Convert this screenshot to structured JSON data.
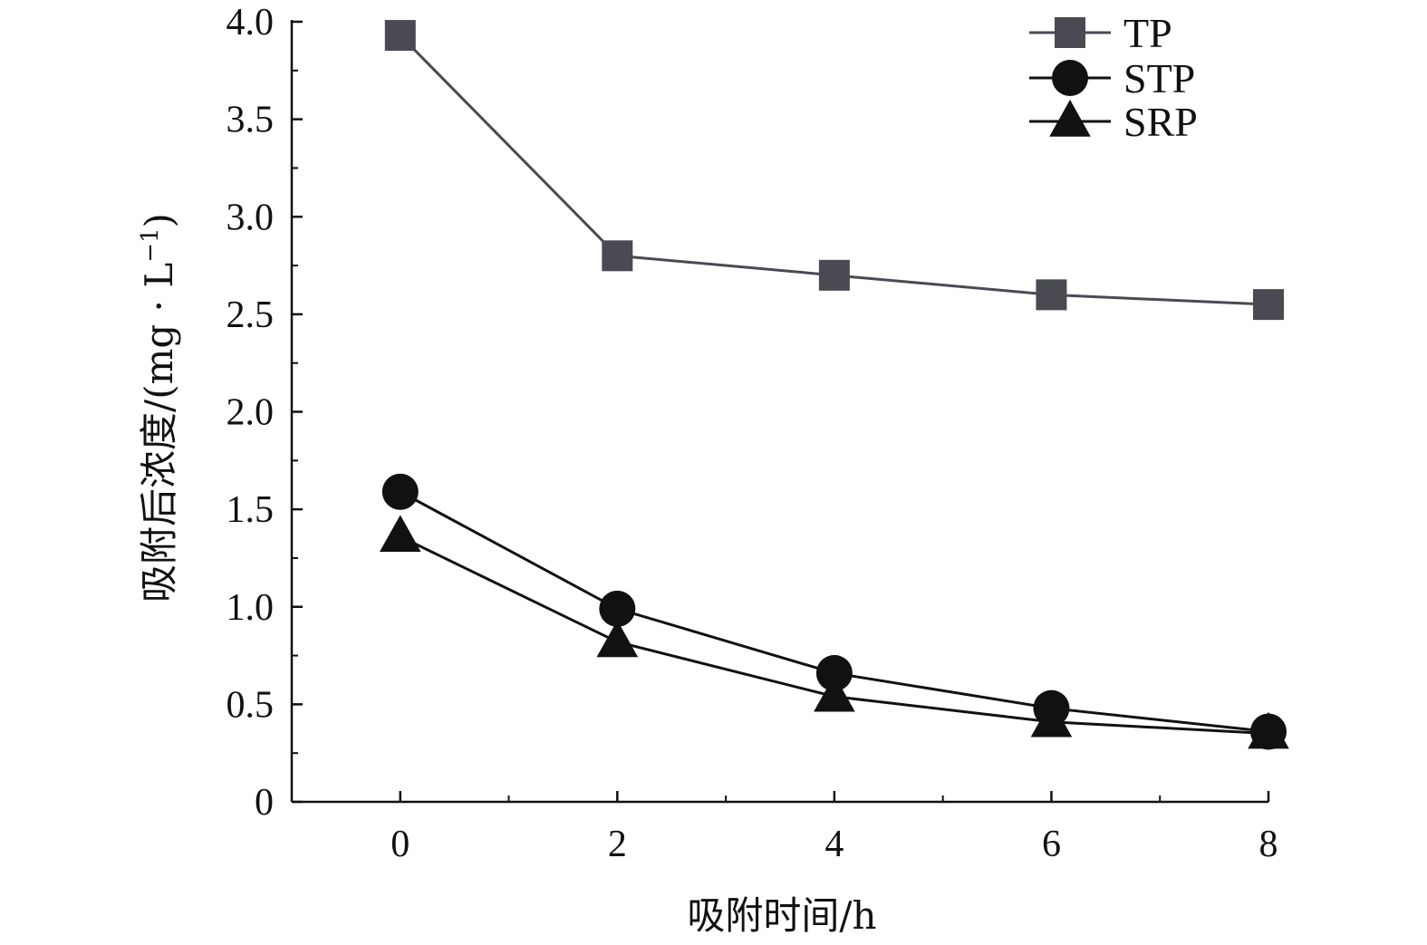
{
  "chart_data": {
    "type": "line",
    "title": "",
    "xlabel": "吸附时间/h",
    "ylabel": "吸附后浓度/(mg · L",
    "ylabel_superscript": "−1",
    "ylabel_close": ")",
    "x": [
      0,
      2,
      4,
      6,
      8
    ],
    "x_ticks": [
      "0",
      "2",
      "4",
      "6",
      "8"
    ],
    "y_ticks": [
      "0",
      "0.5",
      "1.0",
      "1.5",
      "2.0",
      "2.5",
      "3.0",
      "3.5",
      "4.0"
    ],
    "xlim": [
      -1,
      8
    ],
    "ylim": [
      0,
      4.0
    ],
    "grid": false,
    "legend_position": "top-right",
    "series": [
      {
        "name": "TP",
        "marker": "square",
        "color": "#4a4a52",
        "values": [
          3.93,
          2.8,
          2.7,
          2.6,
          2.55
        ]
      },
      {
        "name": "STP",
        "marker": "circle",
        "color": "#111111",
        "values": [
          1.59,
          0.99,
          0.66,
          0.48,
          0.36
        ]
      },
      {
        "name": "SRP",
        "marker": "triangle",
        "color": "#111111",
        "values": [
          1.36,
          0.82,
          0.54,
          0.41,
          0.35
        ]
      }
    ]
  }
}
